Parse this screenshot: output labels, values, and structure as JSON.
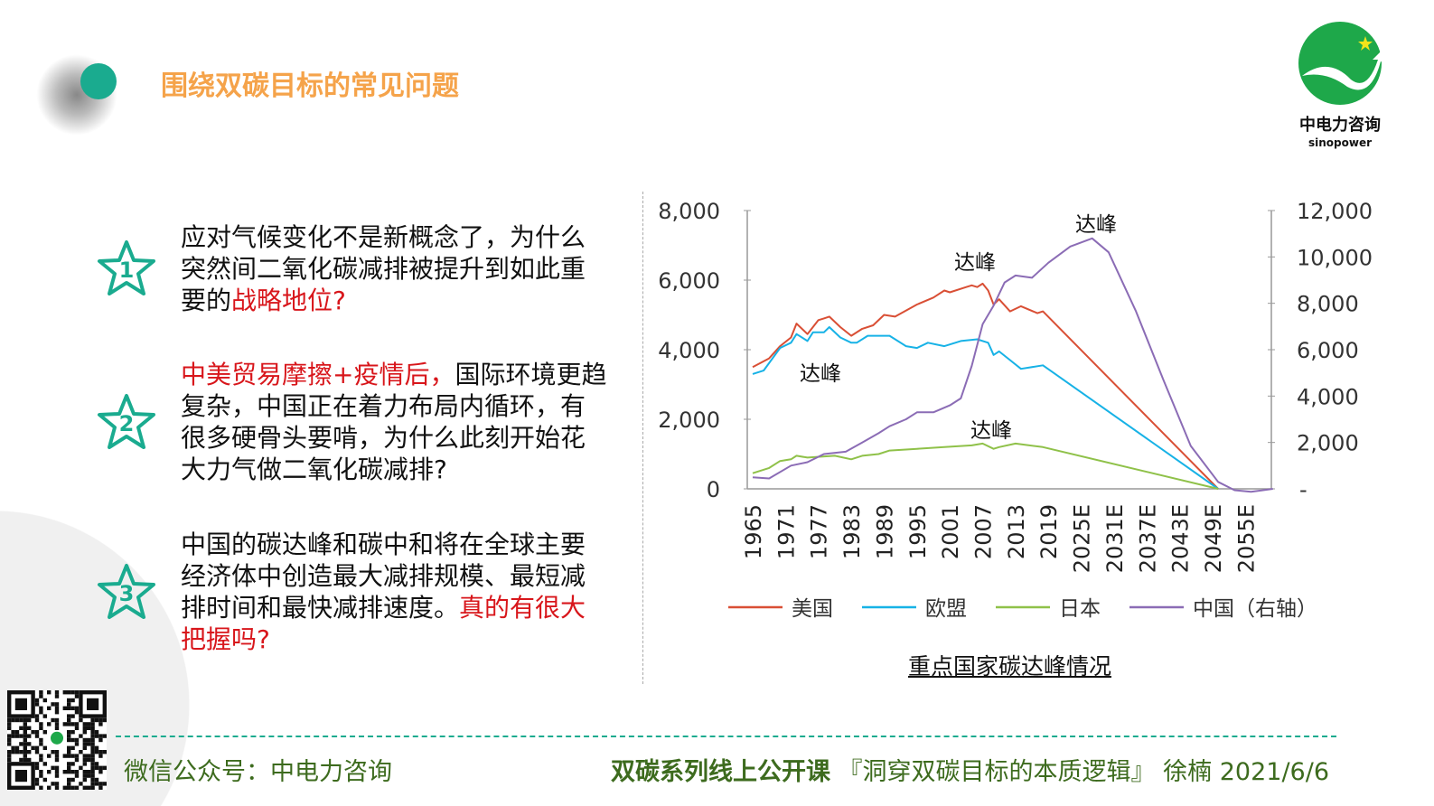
{
  "header": {
    "title": "围绕双碳目标的常见问题"
  },
  "logo": {
    "name": "中电力咨询",
    "sub": "sinopower",
    "colors": {
      "green": "#1ea84a",
      "star": "#f3e41a"
    }
  },
  "questions": [
    {
      "num": "1",
      "segments": [
        {
          "text": "应对气候变化不是新概念了，为什么突然间二氧化碳减排被提升到如此重要的",
          "red": false
        },
        {
          "text": "战略地位?",
          "red": true
        }
      ]
    },
    {
      "num": "2",
      "segments": [
        {
          "text": "中美贸易摩擦+疫情后，",
          "red": true
        },
        {
          "text": "国际环境更趋复杂，中国正在着力布局内循环，有很多硬骨头要啃，为什么此刻开始花大力气做二氧化碳减排?",
          "red": false
        }
      ]
    },
    {
      "num": "3",
      "segments": [
        {
          "text": "中国的碳达峰和碳中和将在全球主要经济体中创造最大减排规模、最短减排时间和最快减排速度。",
          "red": false
        },
        {
          "text": "真的有很大把握吗?",
          "red": true
        }
      ]
    }
  ],
  "footer": {
    "wechat": "微信公众号：中电力咨询",
    "course": "双碳系列线上公开课",
    "topic": "『洞穿双碳目标的本质逻辑』",
    "speaker": "徐楠",
    "date": "2021/6/6"
  },
  "chart_data": {
    "type": "line",
    "title": "重点国家碳达峰情况",
    "x_tick_labels": [
      "1965",
      "1971",
      "1977",
      "1983",
      "1989",
      "1995",
      "2001",
      "2007",
      "2013",
      "2019",
      "2025E",
      "2031E",
      "2037E",
      "2043E",
      "2049E",
      "2055E"
    ],
    "y_left": {
      "ticks": [
        "0",
        "2,000",
        "4,000",
        "6,000",
        "8,000"
      ],
      "range": [
        0,
        8000
      ]
    },
    "y_right": {
      "ticks": [
        "-",
        "2,000",
        "4,000",
        "6,000",
        "8,000",
        "10,000",
        "12,000"
      ],
      "range": [
        0,
        12000
      ]
    },
    "legend_position": "bottom",
    "annotations": [
      {
        "text": "达峰",
        "series": "中国（右轴）",
        "x": 2027
      },
      {
        "text": "达峰",
        "series": "美国",
        "x": 2007
      },
      {
        "text": "达峰",
        "series": "欧盟",
        "x": 1979
      },
      {
        "text": "达峰",
        "series": "日本",
        "x": 2013
      }
    ],
    "series": [
      {
        "name": "美国",
        "axis": "left",
        "color": "#d94f35",
        "points": [
          [
            1965,
            3500
          ],
          [
            1968,
            3750
          ],
          [
            1970,
            4100
          ],
          [
            1972,
            4350
          ],
          [
            1973,
            4750
          ],
          [
            1975,
            4450
          ],
          [
            1977,
            4850
          ],
          [
            1978,
            4900
          ],
          [
            1979,
            4950
          ],
          [
            1981,
            4650
          ],
          [
            1983,
            4400
          ],
          [
            1985,
            4600
          ],
          [
            1987,
            4700
          ],
          [
            1989,
            5000
          ],
          [
            1991,
            4950
          ],
          [
            1995,
            5300
          ],
          [
            1998,
            5500
          ],
          [
            2000,
            5700
          ],
          [
            2001,
            5650
          ],
          [
            2004,
            5800
          ],
          [
            2005,
            5850
          ],
          [
            2006,
            5800
          ],
          [
            2007,
            5900
          ],
          [
            2008,
            5700
          ],
          [
            2009,
            5300
          ],
          [
            2010,
            5450
          ],
          [
            2012,
            5100
          ],
          [
            2014,
            5250
          ],
          [
            2017,
            5050
          ],
          [
            2018,
            5100
          ],
          [
            2050,
            0
          ]
        ]
      },
      {
        "name": "欧盟",
        "axis": "left",
        "color": "#17b2e6",
        "points": [
          [
            1965,
            3300
          ],
          [
            1967,
            3400
          ],
          [
            1970,
            4050
          ],
          [
            1972,
            4200
          ],
          [
            1973,
            4450
          ],
          [
            1975,
            4250
          ],
          [
            1976,
            4500
          ],
          [
            1978,
            4500
          ],
          [
            1979,
            4650
          ],
          [
            1981,
            4350
          ],
          [
            1983,
            4200
          ],
          [
            1984,
            4200
          ],
          [
            1986,
            4400
          ],
          [
            1990,
            4400
          ],
          [
            1993,
            4100
          ],
          [
            1995,
            4050
          ],
          [
            1997,
            4200
          ],
          [
            2000,
            4100
          ],
          [
            2003,
            4250
          ],
          [
            2006,
            4300
          ],
          [
            2008,
            4200
          ],
          [
            2009,
            3850
          ],
          [
            2010,
            3950
          ],
          [
            2012,
            3700
          ],
          [
            2014,
            3450
          ],
          [
            2018,
            3550
          ],
          [
            2050,
            0
          ]
        ]
      },
      {
        "name": "日本",
        "axis": "left",
        "color": "#8fc149",
        "points": [
          [
            1965,
            450
          ],
          [
            1968,
            600
          ],
          [
            1970,
            800
          ],
          [
            1972,
            850
          ],
          [
            1973,
            950
          ],
          [
            1975,
            900
          ],
          [
            1980,
            950
          ],
          [
            1983,
            850
          ],
          [
            1985,
            950
          ],
          [
            1988,
            1000
          ],
          [
            1990,
            1100
          ],
          [
            1995,
            1150
          ],
          [
            2000,
            1200
          ],
          [
            2005,
            1250
          ],
          [
            2007,
            1300
          ],
          [
            2009,
            1150
          ],
          [
            2010,
            1200
          ],
          [
            2013,
            1300
          ],
          [
            2018,
            1200
          ],
          [
            2050,
            0
          ]
        ]
      },
      {
        "name": "中国（右轴）",
        "axis": "right",
        "color": "#8b6cb5",
        "points": [
          [
            1965,
            500
          ],
          [
            1968,
            450
          ],
          [
            1972,
            1000
          ],
          [
            1975,
            1150
          ],
          [
            1978,
            1500
          ],
          [
            1982,
            1600
          ],
          [
            1985,
            2000
          ],
          [
            1988,
            2400
          ],
          [
            1990,
            2700
          ],
          [
            1993,
            3000
          ],
          [
            1995,
            3300
          ],
          [
            1998,
            3300
          ],
          [
            2001,
            3600
          ],
          [
            2003,
            3900
          ],
          [
            2005,
            5300
          ],
          [
            2007,
            7100
          ],
          [
            2009,
            7900
          ],
          [
            2011,
            8900
          ],
          [
            2013,
            9200
          ],
          [
            2016,
            9100
          ],
          [
            2019,
            9750
          ],
          [
            2023,
            10450
          ],
          [
            2027,
            10800
          ],
          [
            2030,
            10200
          ],
          [
            2035,
            7650
          ],
          [
            2040,
            4700
          ],
          [
            2045,
            1850
          ],
          [
            2050,
            300
          ],
          [
            2053,
            -60
          ],
          [
            2056,
            -130
          ],
          [
            2060,
            0
          ]
        ]
      }
    ]
  }
}
